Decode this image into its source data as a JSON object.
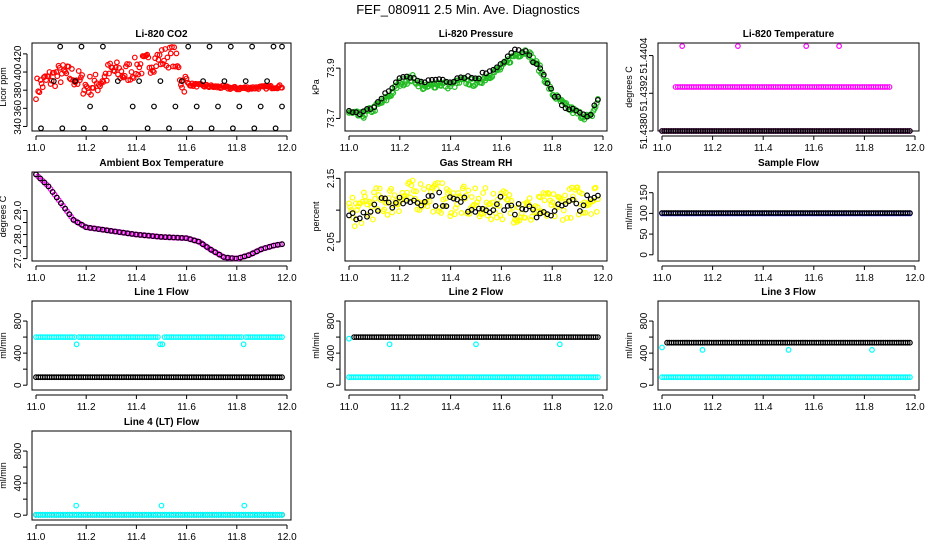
{
  "title": "FEF_080911  2.5 Min. Ave. Diagnostics",
  "colors": {
    "black": "#000000",
    "red": "#ff0000",
    "green": "#22bb22",
    "magenta": "#ff00ff",
    "yellow": "#ffff00",
    "cyan": "#00ffff",
    "blue": "#0000ff"
  },
  "chart_data": [
    {
      "type": "scatter",
      "title": "Li-820 CO2",
      "ylabel": "Licor ppm",
      "xlim": [
        11.0,
        12.0
      ],
      "xticks": [
        11.0,
        11.2,
        11.4,
        11.6,
        11.8,
        12.0
      ],
      "ylim": [
        335,
        432
      ],
      "yticks": [
        340,
        360,
        380,
        400,
        420
      ],
      "series": [
        {
          "name": "co2",
          "color": "#ff0000",
          "pattern": "noisy",
          "x": [
            11.0,
            11.05,
            11.1,
            11.15,
            11.2,
            11.25,
            11.3,
            11.35,
            11.4,
            11.45,
            11.5,
            11.55,
            11.58,
            11.62,
            11.7,
            11.8,
            11.9,
            11.98
          ],
          "y": [
            382,
            392,
            398,
            395,
            384,
            388,
            402,
            398,
            405,
            410,
            415,
            418,
            390,
            386,
            384,
            382,
            383,
            384
          ],
          "noise": 12
        },
        {
          "name": "ref",
          "color": "#000000",
          "pattern": "levels",
          "x_start": 11.02,
          "x_end": 11.98,
          "levels": [
            338,
            362,
            390,
            428
          ]
        }
      ]
    },
    {
      "type": "scatter",
      "title": "Li-820 Pressure",
      "ylabel": "kPa",
      "xlim": [
        11.0,
        12.0
      ],
      "xticks": [
        11.0,
        11.2,
        11.4,
        11.6,
        11.8,
        12.0
      ],
      "ylim": [
        73.65,
        74.0
      ],
      "yticks": [
        73.7,
        73.9
      ],
      "ytick_labels": [
        "73.7",
        "73.9"
      ],
      "series": [
        {
          "name": "pressure",
          "color": "#22bb22",
          "pattern": "noisy",
          "x": [
            11.0,
            11.05,
            11.1,
            11.15,
            11.2,
            11.25,
            11.3,
            11.35,
            11.4,
            11.45,
            11.5,
            11.55,
            11.6,
            11.65,
            11.7,
            11.75,
            11.8,
            11.85,
            11.9,
            11.95,
            11.98
          ],
          "y": [
            73.72,
            73.71,
            73.74,
            73.78,
            73.84,
            73.86,
            73.82,
            73.84,
            73.83,
            73.85,
            73.84,
            73.87,
            73.9,
            73.95,
            73.97,
            73.9,
            73.8,
            73.75,
            73.72,
            73.7,
            73.77
          ],
          "noise": 0.015
        },
        {
          "name": "ref",
          "color": "#000000",
          "pattern": "sparse",
          "x": [
            11.0,
            11.05,
            11.1,
            11.15,
            11.2,
            11.25,
            11.3,
            11.35,
            11.4,
            11.45,
            11.5,
            11.55,
            11.6,
            11.65,
            11.7,
            11.75,
            11.8,
            11.85,
            11.9,
            11.95,
            11.98
          ],
          "y": [
            73.73,
            73.72,
            73.75,
            73.8,
            73.86,
            73.87,
            73.84,
            73.86,
            73.85,
            73.87,
            73.86,
            73.89,
            73.92,
            73.97,
            73.96,
            73.9,
            73.8,
            73.75,
            73.72,
            73.71,
            73.78
          ],
          "noise": 0.01
        }
      ]
    },
    {
      "type": "scatter",
      "title": "Li-820 Temperature",
      "ylabel": "degrees C",
      "xlim": [
        11.0,
        12.0
      ],
      "xticks": [
        11.0,
        11.2,
        11.4,
        11.6,
        11.8,
        12.0
      ],
      "ylim": [
        51.438,
        51.4408
      ],
      "yticks": [
        51.438,
        51.4392,
        51.4404
      ],
      "ytick_labels": [
        "51.4380",
        "51.4392",
        "51.4404"
      ],
      "series": [
        {
          "name": "temp",
          "color": "#ff00ff",
          "pattern": "mixed",
          "x_start": 11.0,
          "x_end": 11.98,
          "base": 51.438,
          "mid": 51.4394,
          "top": 51.4407
        },
        {
          "name": "ref",
          "color": "#000000",
          "pattern": "flat",
          "x_start": 11.0,
          "x_end": 11.98,
          "value": 51.438
        }
      ]
    },
    {
      "type": "scatter",
      "title": "Ambient Box Temperature",
      "ylabel": "degrees C",
      "xlim": [
        11.0,
        12.0
      ],
      "xticks": [
        11.0,
        11.2,
        11.4,
        11.6,
        11.8,
        12.0
      ],
      "ylim": [
        26.9,
        30.6
      ],
      "yticks": [
        27.0,
        28.0,
        29.0
      ],
      "ytick_labels": [
        "27.0",
        "28.0",
        "29.0"
      ],
      "ytick_extra": [
        27.5,
        28.5
      ],
      "series": [
        {
          "name": "temp",
          "color": "#ff00ff",
          "pattern": "smooth",
          "x": [
            11.0,
            11.05,
            11.1,
            11.15,
            11.2,
            11.3,
            11.4,
            11.5,
            11.6,
            11.65,
            11.7,
            11.75,
            11.8,
            11.85,
            11.9,
            11.95,
            11.98
          ],
          "y": [
            30.5,
            30.0,
            29.3,
            28.6,
            28.3,
            28.15,
            28.0,
            27.9,
            27.85,
            27.7,
            27.35,
            27.05,
            27.0,
            27.15,
            27.4,
            27.55,
            27.6
          ]
        },
        {
          "name": "ref",
          "color": "#000000",
          "pattern": "smooth",
          "x": [
            11.0,
            11.05,
            11.1,
            11.15,
            11.2,
            11.3,
            11.4,
            11.5,
            11.6,
            11.65,
            11.7,
            11.75,
            11.8,
            11.85,
            11.9,
            11.95,
            11.98
          ],
          "y": [
            30.5,
            30.0,
            29.3,
            28.6,
            28.3,
            28.15,
            28.0,
            27.9,
            27.85,
            27.7,
            27.35,
            27.05,
            27.0,
            27.15,
            27.4,
            27.55,
            27.6
          ]
        }
      ]
    },
    {
      "type": "scatter",
      "title": "Gas Stream RH",
      "ylabel": "percent",
      "xlim": [
        11.0,
        12.0
      ],
      "xticks": [
        11.0,
        11.2,
        11.4,
        11.6,
        11.8,
        12.0
      ],
      "ylim": [
        2.02,
        2.16
      ],
      "yticks": [
        2.05,
        2.1,
        2.15
      ],
      "ytick_labels": [
        "2.05",
        "",
        "2.15"
      ],
      "series": [
        {
          "name": "rh",
          "color": "#ffff00",
          "pattern": "noisy",
          "x": [
            11.0,
            11.1,
            11.2,
            11.3,
            11.4,
            11.5,
            11.6,
            11.7,
            11.8,
            11.9,
            11.98
          ],
          "y": [
            2.095,
            2.11,
            2.12,
            2.125,
            2.115,
            2.11,
            2.11,
            2.1,
            2.105,
            2.115,
            2.12
          ],
          "noise": 0.025
        },
        {
          "name": "ref",
          "color": "#000000",
          "pattern": "sparse",
          "x": [
            11.0,
            11.1,
            11.2,
            11.3,
            11.4,
            11.5,
            11.6,
            11.7,
            11.8,
            11.9,
            11.98
          ],
          "y": [
            2.09,
            2.105,
            2.115,
            2.12,
            2.115,
            2.105,
            2.11,
            2.095,
            2.1,
            2.11,
            2.115
          ],
          "noise": 0.012
        }
      ]
    },
    {
      "type": "scatter",
      "title": "Sample Flow",
      "ylabel": "ml/min",
      "xlim": [
        11.0,
        12.0
      ],
      "xticks": [
        11.0,
        11.2,
        11.4,
        11.6,
        11.8,
        12.0
      ],
      "ylim": [
        -15,
        200
      ],
      "yticks": [
        0,
        50,
        100,
        150
      ],
      "series": [
        {
          "name": "flow",
          "color": "#0000ff",
          "pattern": "flat",
          "x_start": 11.0,
          "x_end": 11.98,
          "value": 100
        },
        {
          "name": "ref",
          "color": "#000000",
          "pattern": "flat",
          "x_start": 11.0,
          "x_end": 11.98,
          "value": 101
        }
      ]
    },
    {
      "type": "scatter",
      "title": "Line 1 Flow",
      "ylabel": "ml/min",
      "xlim": [
        11.0,
        12.0
      ],
      "xticks": [
        11.0,
        11.2,
        11.4,
        11.6,
        11.8,
        12.0
      ],
      "ylim": [
        -60,
        1050
      ],
      "yticks": [
        0,
        200,
        400,
        600,
        800
      ],
      "ytick_labels": [
        "0",
        "",
        "400",
        "",
        "800"
      ],
      "series": [
        {
          "name": "line1",
          "color": "#00ffff",
          "pattern": "flat",
          "x_start": 11.0,
          "x_end": 11.98,
          "value": 600,
          "dips": [
            11.16,
            11.5,
            11.83
          ],
          "dip_value": 510
        },
        {
          "name": "ref",
          "color": "#000000",
          "pattern": "flat",
          "x_start": 11.0,
          "x_end": 11.98,
          "value": 100
        }
      ]
    },
    {
      "type": "scatter",
      "title": "Line 2 Flow",
      "ylabel": "ml/min",
      "xlim": [
        11.0,
        12.0
      ],
      "xticks": [
        11.0,
        11.2,
        11.4,
        11.6,
        11.8,
        12.0
      ],
      "ylim": [
        -60,
        1050
      ],
      "yticks": [
        0,
        200,
        400,
        600,
        800
      ],
      "ytick_labels": [
        "0",
        "",
        "400",
        "",
        "800"
      ],
      "series": [
        {
          "name": "line2",
          "color": "#00ffff",
          "pattern": "flat",
          "x_start": 11.0,
          "x_end": 11.98,
          "value": 100
        },
        {
          "name": "ref",
          "color": "#000000",
          "pattern": "flat",
          "x_start": 11.02,
          "x_end": 11.98,
          "value": 600
        },
        {
          "name": "marks",
          "color": "#00ffff",
          "pattern": "points",
          "x": [
            11.0,
            11.16,
            11.5,
            11.83
          ],
          "y": [
            580,
            510,
            510,
            510
          ]
        }
      ]
    },
    {
      "type": "scatter",
      "title": "Line 3 Flow",
      "ylabel": "ml/min",
      "xlim": [
        11.0,
        12.0
      ],
      "xticks": [
        11.0,
        11.2,
        11.4,
        11.6,
        11.8,
        12.0
      ],
      "ylim": [
        -60,
        1050
      ],
      "yticks": [
        0,
        200,
        400,
        600,
        800
      ],
      "ytick_labels": [
        "0",
        "",
        "400",
        "",
        "800"
      ],
      "series": [
        {
          "name": "line3",
          "color": "#00ffff",
          "pattern": "flat",
          "x_start": 11.0,
          "x_end": 11.98,
          "value": 100
        },
        {
          "name": "ref",
          "color": "#000000",
          "pattern": "flat",
          "x_start": 11.02,
          "x_end": 11.98,
          "value": 530
        },
        {
          "name": "marks",
          "color": "#00ffff",
          "pattern": "points",
          "x": [
            11.0,
            11.16,
            11.5,
            11.83
          ],
          "y": [
            470,
            440,
            440,
            440
          ]
        }
      ]
    },
    {
      "type": "scatter",
      "title": "Line 4 (LT) Flow",
      "ylabel": "ml/min",
      "xlim": [
        11.0,
        12.0
      ],
      "xticks": [
        11.0,
        11.2,
        11.4,
        11.6,
        11.8,
        12.0
      ],
      "ylim": [
        -60,
        1050
      ],
      "yticks": [
        0,
        200,
        400,
        600,
        800
      ],
      "ytick_labels": [
        "0",
        "",
        "400",
        "",
        "800"
      ],
      "series": [
        {
          "name": "ref",
          "color": "#000000",
          "pattern": "flat",
          "x_start": 11.0,
          "x_end": 11.98,
          "value": 5
        },
        {
          "name": "line4",
          "color": "#00ffff",
          "pattern": "flat",
          "x_start": 11.0,
          "x_end": 11.98,
          "value": 5
        },
        {
          "name": "marks",
          "color": "#00ffff",
          "pattern": "points",
          "x": [
            11.16,
            11.5,
            11.83
          ],
          "y": [
            120,
            120,
            120
          ]
        }
      ]
    }
  ]
}
